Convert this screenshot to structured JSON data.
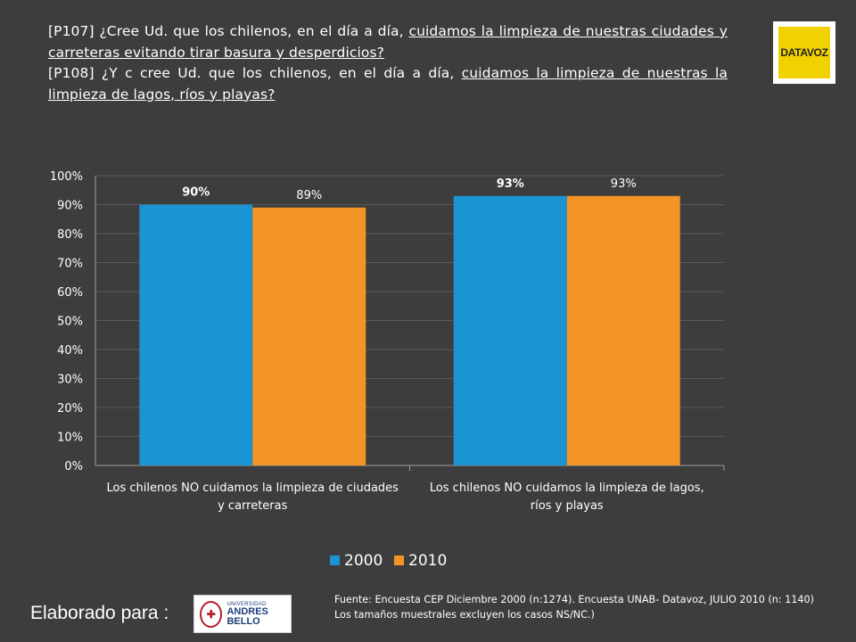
{
  "header": {
    "q1_prefix": "[P107] ¿Cree Ud. que los chilenos, en el día a día, ",
    "q1_underlined": "cuidamos la limpieza de nuestras ciudades y carreteras evitando tirar basura y desperdicios?",
    "q2_prefix": "[P108] ¿Y c cree Ud. que los chilenos, en el día a día, ",
    "q2_underlined": "cuidamos la limpieza de nuestras la limpieza de lagos, ríos y playas?"
  },
  "logo_text": "DATAVOZ",
  "chart_data": {
    "type": "bar",
    "categories": [
      [
        "Los chilenos NO cuidamos la limpieza de ciudades",
        "y carreteras"
      ],
      [
        "Los chilenos NO cuidamos la limpieza de lagos,",
        "ríos y playas"
      ]
    ],
    "series": [
      {
        "name": "2000",
        "values": [
          90,
          93
        ],
        "labels": [
          "90%",
          "93%"
        ],
        "color": "#1a94d2",
        "label_bold": true
      },
      {
        "name": "2010",
        "values": [
          89,
          93
        ],
        "labels": [
          "89%",
          "93%"
        ],
        "color": "#f39426",
        "label_bold": false
      }
    ],
    "ylim": [
      0,
      100
    ],
    "yticks": [
      "0%",
      "10%",
      "20%",
      "30%",
      "40%",
      "50%",
      "60%",
      "70%",
      "80%",
      "90%",
      "100%"
    ],
    "grid": true,
    "legend": "bottom",
    "colors": {
      "axis": "#9a9a9a",
      "grid": "#595959",
      "text": "#ffffff",
      "label_2000": "#ffffff",
      "label_2010": "#ffffff"
    }
  },
  "footer": {
    "elaborado": "Elaborado para :",
    "unab_line1": "UNIVERSIDAD",
    "unab_line2": "ANDRES BELLO",
    "source": "Fuente: Encuesta CEP Diciembre 2000 (n:1274). Encuesta UNAB- Datavoz, JULIO 2010 (n: 1140)  Los tamaños muestrales excluyen los casos NS/NC.)"
  }
}
